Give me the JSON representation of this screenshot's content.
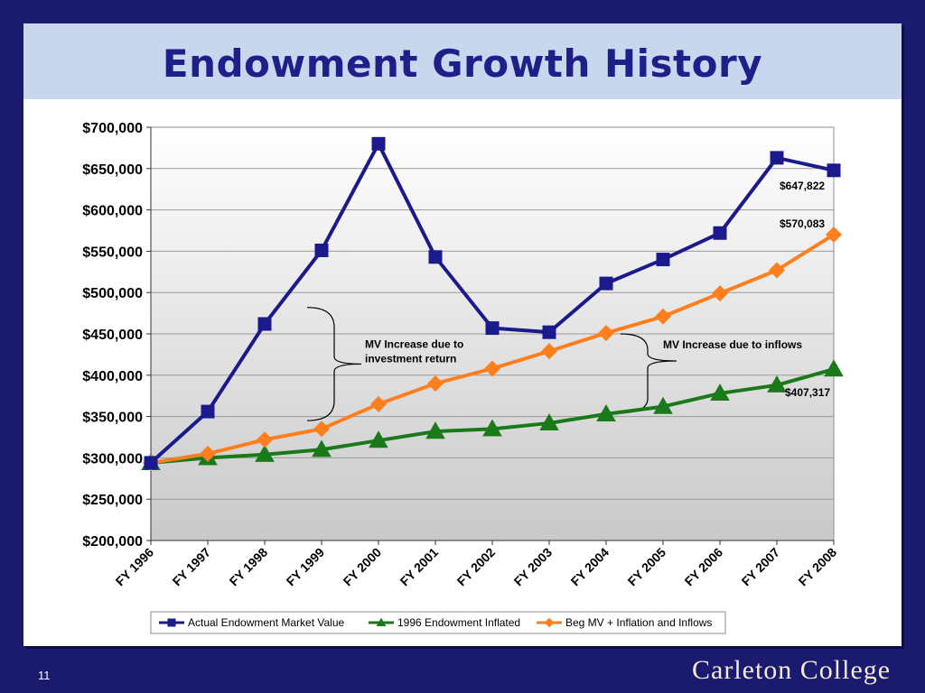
{
  "slide": {
    "title": "Endowment Growth History",
    "page_number": "11",
    "logo_text": "Carleton College"
  },
  "colors": {
    "background": "#1a1a6e",
    "title_band": "#c8d6ee",
    "title_text": "#1f1f8a",
    "series_actual": "#1a1a8c",
    "series_inflated": "#1a7a1a",
    "series_inflows": "#ff7f1e"
  },
  "chart_data": {
    "type": "line",
    "title": "",
    "xlabel": "",
    "ylabel": "",
    "categories": [
      "FY 1996",
      "FY 1997",
      "FY 1998",
      "FY 1999",
      "FY 2000",
      "FY 2001",
      "FY 2002",
      "FY 2003",
      "FY 2004",
      "FY 2005",
      "FY 2006",
      "FY 2007",
      "FY 2008"
    ],
    "ylim": [
      200000,
      700000
    ],
    "yticks": [
      200000,
      250000,
      300000,
      350000,
      400000,
      450000,
      500000,
      550000,
      600000,
      650000,
      700000
    ],
    "ytick_labels": [
      "$200,000",
      "$250,000",
      "$300,000",
      "$350,000",
      "$400,000",
      "$450,000",
      "$500,000",
      "$550,000",
      "$600,000",
      "$650,000",
      "$700,000"
    ],
    "grid": true,
    "legend_position": "bottom",
    "series": [
      {
        "name": "Actual Endowment Market Value",
        "marker": "square",
        "color": "#1a1a8c",
        "values": [
          294000,
          356000,
          462000,
          551000,
          680000,
          543000,
          457000,
          452000,
          511000,
          540000,
          572000,
          663000,
          647822
        ]
      },
      {
        "name": "1996 Endowment Inflated",
        "marker": "triangle",
        "color": "#1a7a1a",
        "values": [
          294000,
          300000,
          304000,
          310000,
          321000,
          332000,
          335000,
          342000,
          353000,
          362000,
          378000,
          388000,
          407317
        ]
      },
      {
        "name": "Beg MV + Inflation and Inflows",
        "marker": "diamond",
        "color": "#ff7f1e",
        "values": [
          294000,
          305000,
          322000,
          335000,
          365000,
          390000,
          408000,
          429000,
          451000,
          471000,
          499000,
          527000,
          570083
        ]
      }
    ],
    "data_labels": [
      {
        "series": 0,
        "index": 12,
        "text": "$647,822"
      },
      {
        "series": 2,
        "index": 12,
        "text": "$570,083"
      },
      {
        "series": 1,
        "index": 12,
        "text": "$407,317"
      }
    ],
    "annotations": [
      {
        "text_lines": [
          "MV Increase due to",
          "investment return"
        ],
        "from_value": 345000,
        "to_value": 482000,
        "category_index": 3
      },
      {
        "text_lines": [
          "MV Increase due to inflows"
        ],
        "from_value": 354000,
        "to_value": 450000,
        "category_index": 8
      }
    ]
  }
}
